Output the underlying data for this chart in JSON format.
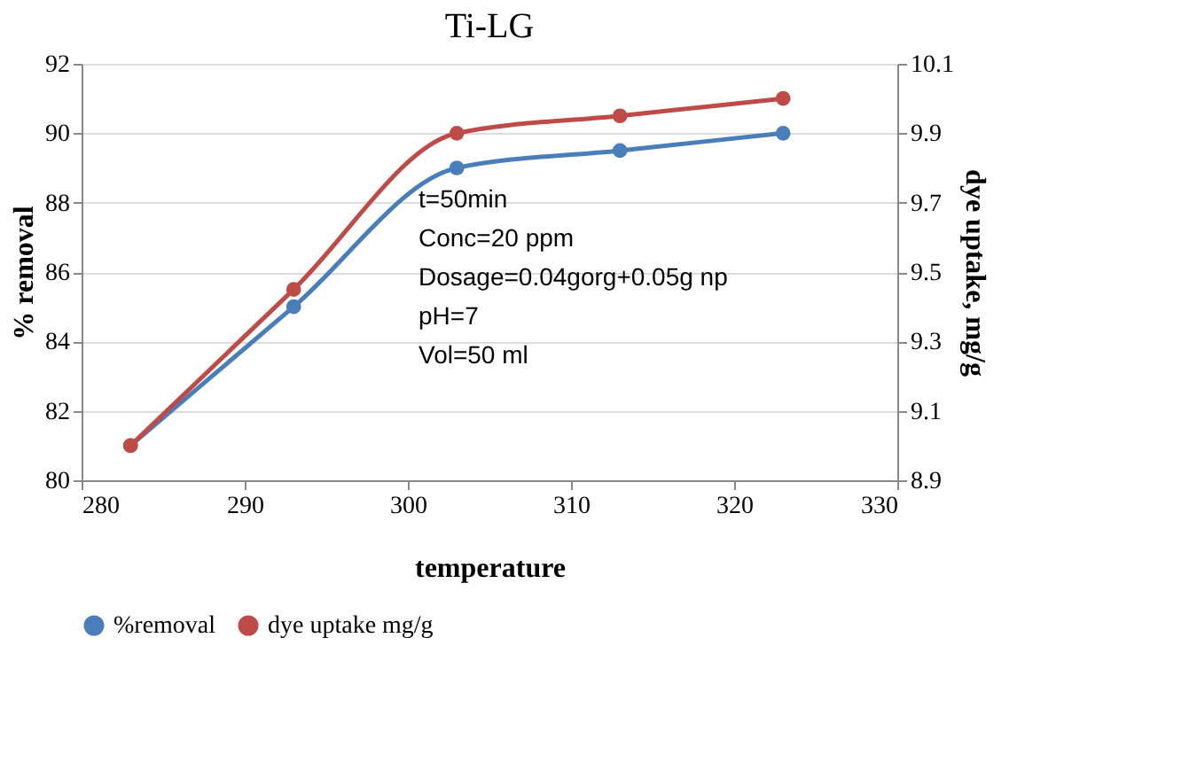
{
  "chart_data": {
    "type": "line",
    "title": "Ti-LG",
    "xlabel": "temperature",
    "ylabel": "% removal",
    "y2label": "dye uptake, mg/g",
    "x": [
      283,
      293,
      303,
      313,
      323
    ],
    "series": [
      {
        "name": "%removal",
        "color": "#4a7ebb",
        "values": [
          81,
          85,
          89,
          89.5,
          90
        ]
      },
      {
        "name": "dye uptake mg/g",
        "color": "#be4b48",
        "values": [
          9.0,
          9.45,
          9.9,
          9.95,
          10.0
        ],
        "axis": "y2"
      }
    ],
    "xlim": [
      280,
      330
    ],
    "xticks": [
      280,
      290,
      300,
      310,
      320,
      330
    ],
    "ylim": [
      80,
      92
    ],
    "yticks": [
      80,
      82,
      84,
      86,
      88,
      90,
      92
    ],
    "y2lim": [
      8.9,
      10.1
    ],
    "y2ticks": [
      8.9,
      9.1,
      9.3,
      9.5,
      9.7,
      9.9,
      10.1
    ],
    "annotations": [
      "t=50min",
      "Conc=20 ppm",
      "Dosage=0.04gorg+0.05g np",
      "pH=7",
      "Vol=50 ml"
    ],
    "grid": "y",
    "legend": "bottom",
    "marker": "circle",
    "line_style": "solid"
  }
}
